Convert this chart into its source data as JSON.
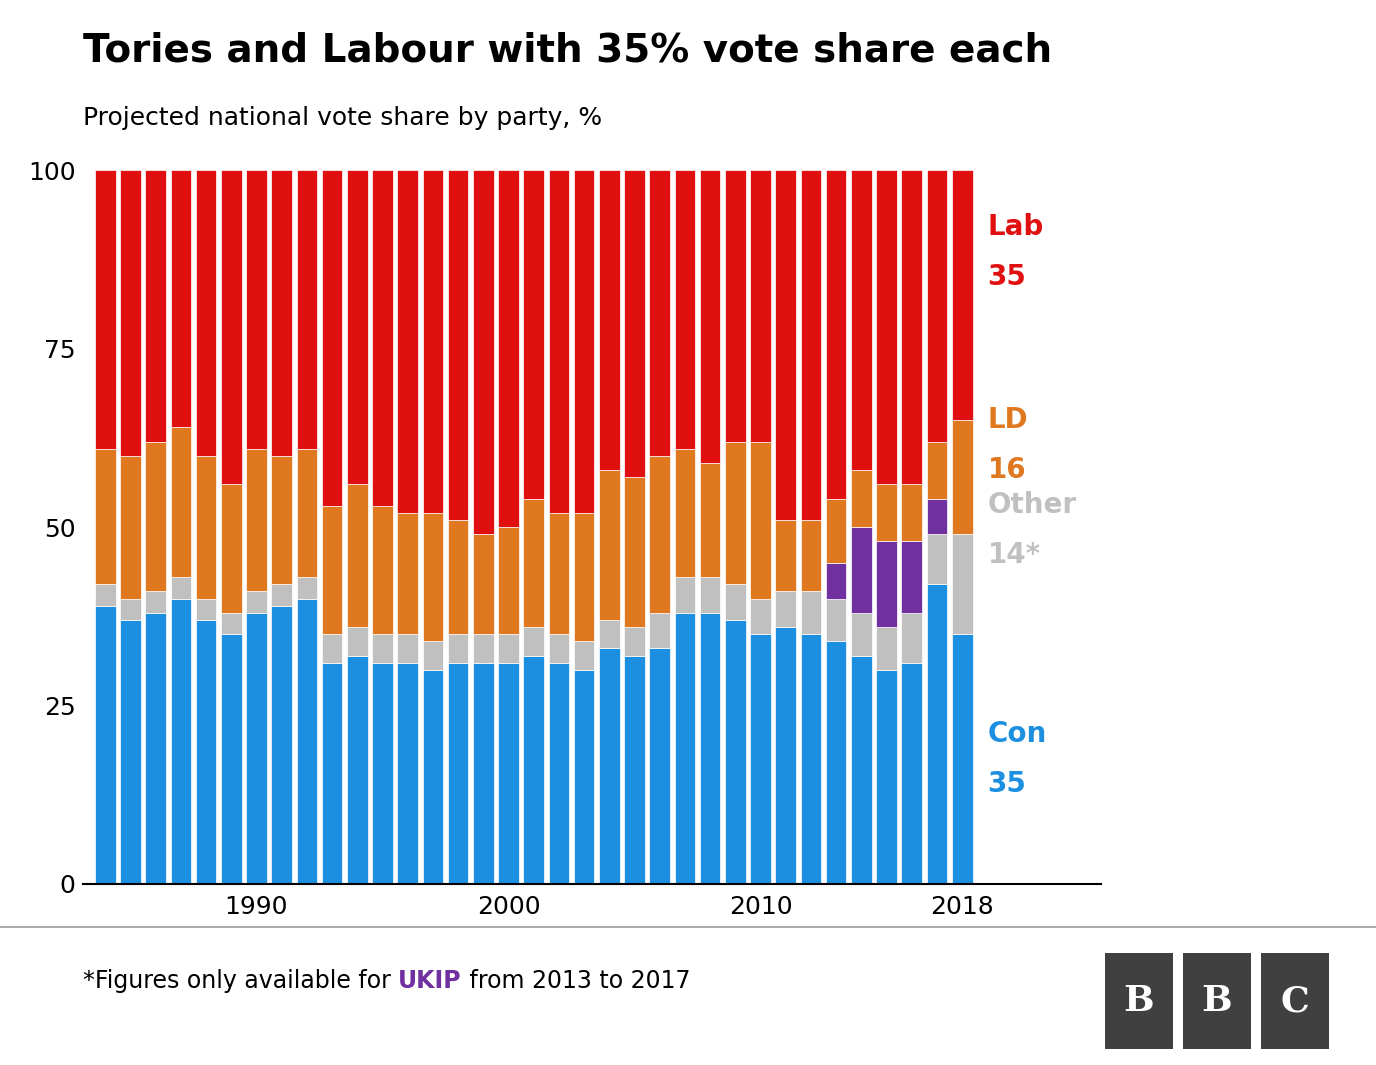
{
  "title": "Tories and Labour with 35% vote share each",
  "subtitle": "Projected national vote share by party, %",
  "footnote_pre": "*Figures only available for ",
  "footnote_ukip": "UKIP",
  "footnote_post": " from 2013 to 2017",
  "colors": {
    "con": "#1d8fe0",
    "other": "#c0c0c0",
    "ld": "#e07820",
    "lab": "#e01010",
    "ukip": "#7030a0"
  },
  "years": [
    1984,
    1985,
    1986,
    1987,
    1988,
    1989,
    1990,
    1991,
    1992,
    1993,
    1994,
    1995,
    1996,
    1997,
    1998,
    1999,
    2000,
    2001,
    2002,
    2003,
    2004,
    2005,
    2006,
    2007,
    2008,
    2009,
    2010,
    2011,
    2012,
    2013,
    2014,
    2015,
    2016,
    2017,
    2018
  ],
  "con": [
    39,
    37,
    38,
    40,
    37,
    35,
    38,
    39,
    40,
    31,
    32,
    31,
    31,
    30,
    31,
    31,
    31,
    32,
    31,
    30,
    33,
    32,
    33,
    38,
    38,
    37,
    35,
    36,
    35,
    34,
    32,
    30,
    31,
    42,
    35
  ],
  "other": [
    3,
    3,
    3,
    3,
    3,
    3,
    3,
    3,
    3,
    4,
    4,
    4,
    4,
    4,
    4,
    4,
    4,
    4,
    4,
    4,
    4,
    4,
    5,
    5,
    5,
    5,
    5,
    5,
    6,
    6,
    6,
    6,
    7,
    7,
    14
  ],
  "ld": [
    19,
    20,
    21,
    21,
    20,
    18,
    20,
    18,
    18,
    18,
    20,
    18,
    17,
    18,
    16,
    14,
    15,
    18,
    17,
    18,
    21,
    21,
    22,
    18,
    16,
    20,
    22,
    10,
    10,
    9,
    8,
    8,
    8,
    8,
    16
  ],
  "ukip": [
    0,
    0,
    0,
    0,
    0,
    0,
    0,
    0,
    0,
    0,
    0,
    0,
    0,
    0,
    0,
    0,
    0,
    0,
    0,
    0,
    0,
    0,
    0,
    0,
    0,
    0,
    0,
    0,
    0,
    5,
    12,
    12,
    10,
    5,
    0
  ],
  "lab": [
    39,
    40,
    38,
    36,
    40,
    44,
    39,
    40,
    39,
    47,
    44,
    47,
    48,
    48,
    49,
    51,
    50,
    46,
    48,
    48,
    42,
    43,
    40,
    39,
    41,
    38,
    38,
    49,
    49,
    46,
    42,
    44,
    44,
    38,
    35
  ],
  "labels": {
    "lab_name": "Lab",
    "lab_val": "35",
    "ld_name": "LD",
    "ld_val": "16",
    "other_name": "Other",
    "other_val": "14*",
    "con_name": "Con",
    "con_val": "35"
  },
  "ylim": [
    0,
    100
  ],
  "yticks": [
    0,
    25,
    50,
    75,
    100
  ],
  "xticks": [
    1990,
    2000,
    2010,
    2018
  ],
  "background_color": "#ffffff"
}
